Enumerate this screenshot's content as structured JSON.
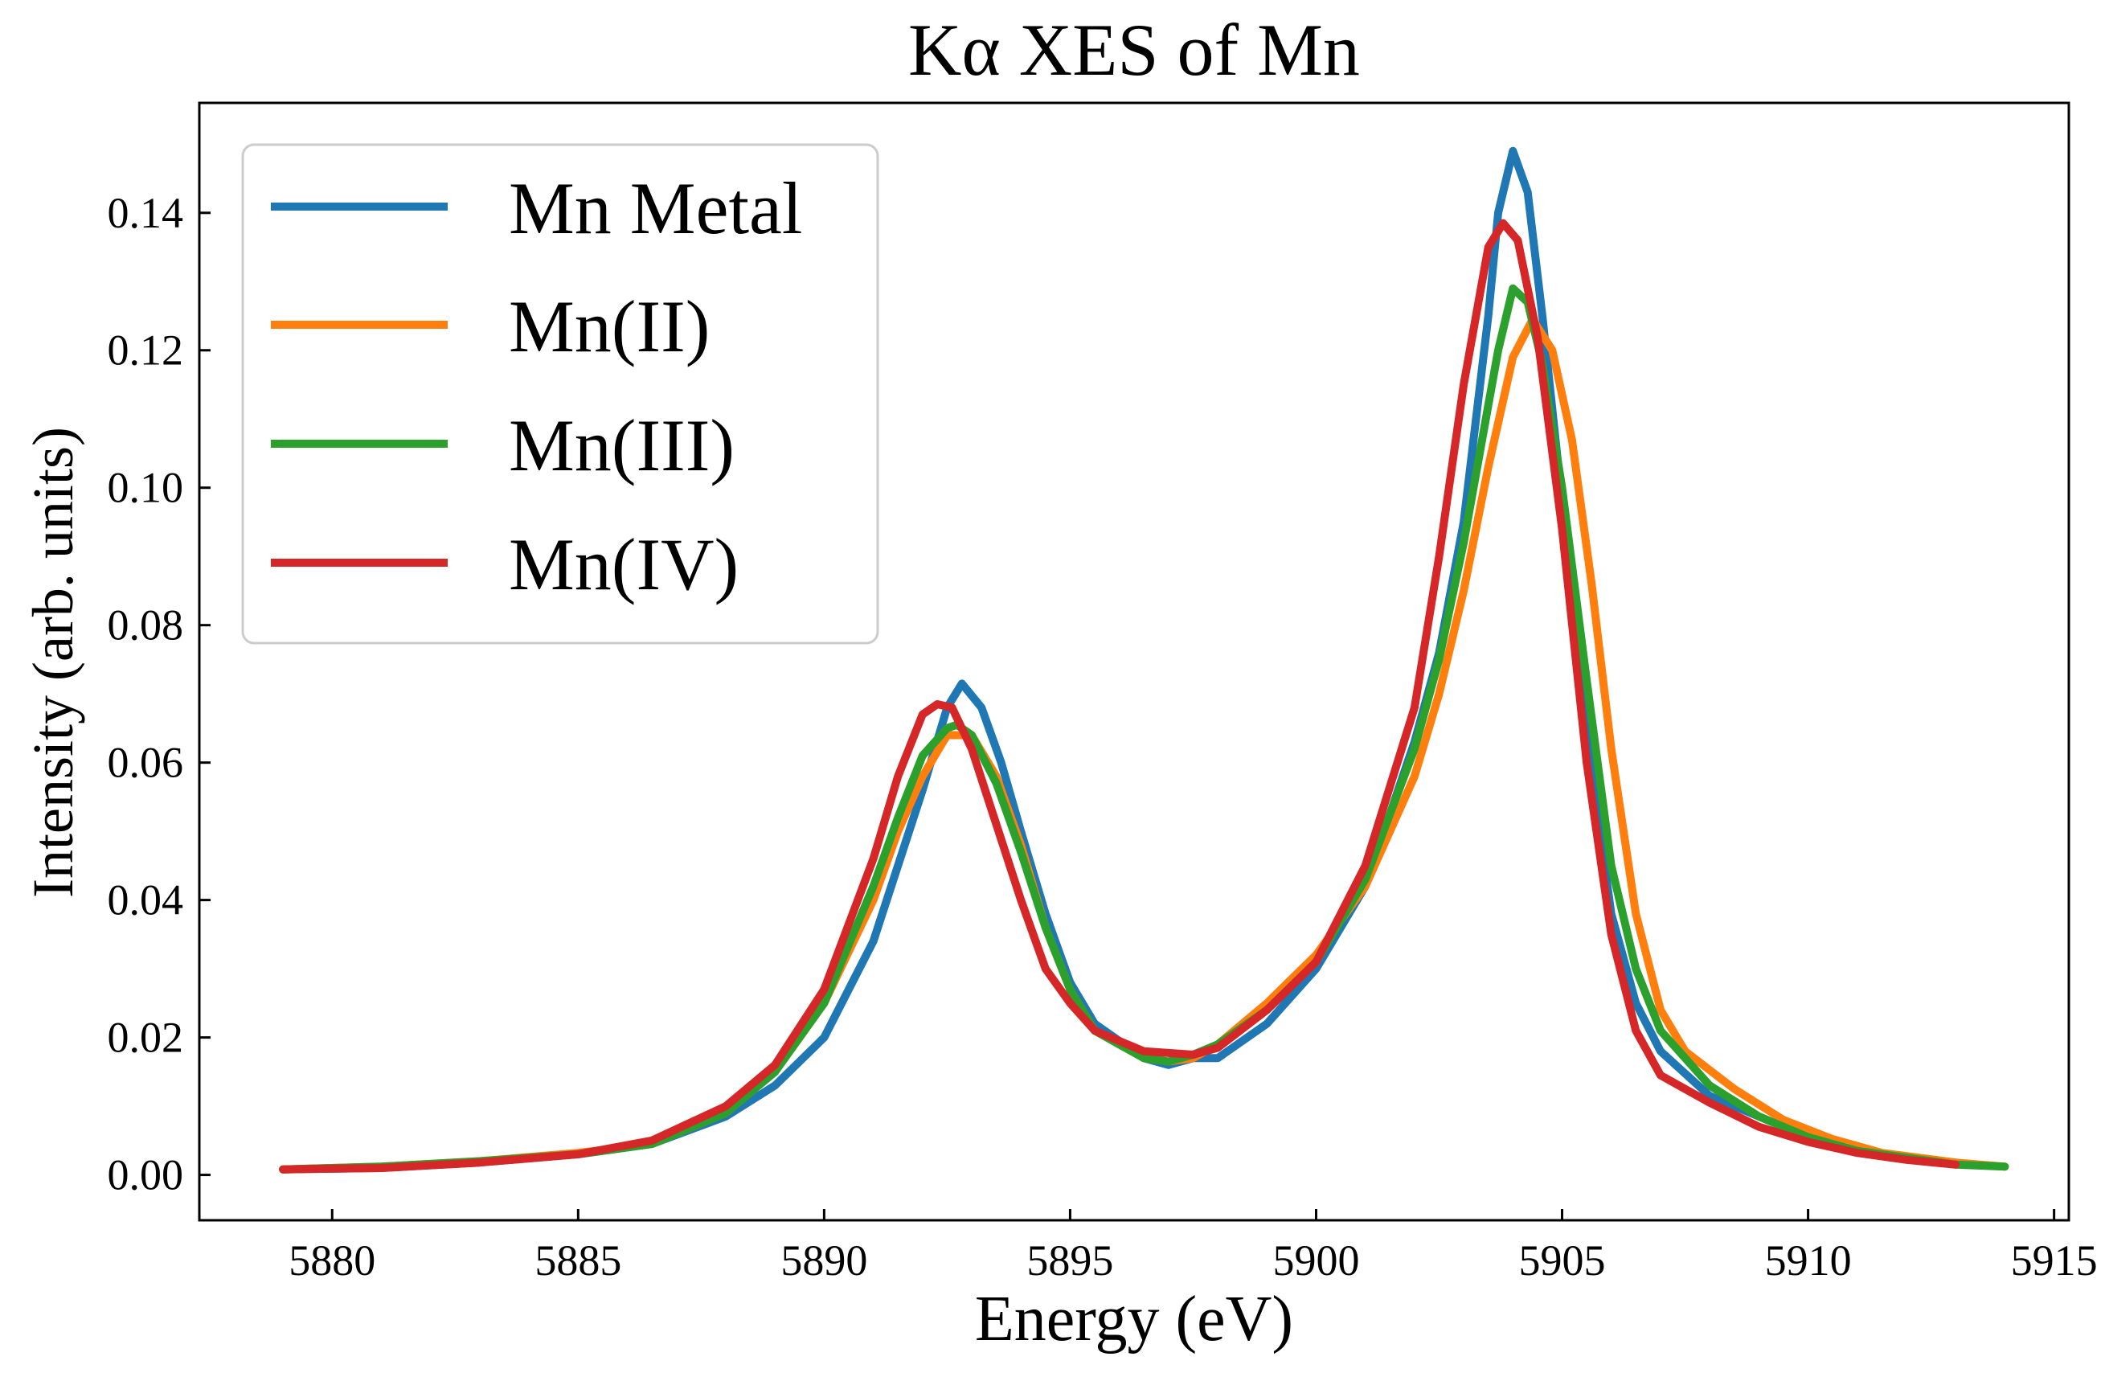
{
  "chart_data": {
    "type": "line",
    "title": "Kα XES of Mn",
    "xlabel": "Energy (eV)",
    "ylabel": "Intensity (arb. units)",
    "xlim": [
      5877.3,
      5915.3
    ],
    "ylim": [
      -0.0066,
      0.156
    ],
    "xticks": [
      5880,
      5885,
      5890,
      5895,
      5900,
      5905,
      5910,
      5915
    ],
    "yticks": [
      0.0,
      0.02,
      0.04,
      0.06,
      0.08,
      0.1,
      0.12,
      0.14
    ],
    "xtick_labels": [
      "5880",
      "5885",
      "5890",
      "5895",
      "5900",
      "5905",
      "5910",
      "5915"
    ],
    "ytick_labels": [
      "0.00",
      "0.02",
      "0.04",
      "0.06",
      "0.08",
      "0.10",
      "0.12",
      "0.14"
    ],
    "grid": false,
    "legend_position": "top-left",
    "series": [
      {
        "name": "Mn Metal",
        "color": "#1f77b4",
        "points": [
          [
            5879,
            0.0008
          ],
          [
            5881,
            0.001
          ],
          [
            5883,
            0.0018
          ],
          [
            5885,
            0.003
          ],
          [
            5886.5,
            0.0045
          ],
          [
            5888,
            0.0085
          ],
          [
            5889,
            0.013
          ],
          [
            5890,
            0.02
          ],
          [
            5891,
            0.034
          ],
          [
            5891.5,
            0.045
          ],
          [
            5892,
            0.056
          ],
          [
            5892.5,
            0.068
          ],
          [
            5892.8,
            0.0715
          ],
          [
            5893.2,
            0.068
          ],
          [
            5893.6,
            0.06
          ],
          [
            5894,
            0.05
          ],
          [
            5894.5,
            0.038
          ],
          [
            5895,
            0.028
          ],
          [
            5895.5,
            0.022
          ],
          [
            5896.5,
            0.017
          ],
          [
            5897,
            0.016
          ],
          [
            5897.5,
            0.017
          ],
          [
            5898,
            0.017
          ],
          [
            5899,
            0.022
          ],
          [
            5900,
            0.03
          ],
          [
            5901,
            0.042
          ],
          [
            5902,
            0.063
          ],
          [
            5902.5,
            0.076
          ],
          [
            5903,
            0.095
          ],
          [
            5903.5,
            0.125
          ],
          [
            5903.7,
            0.14
          ],
          [
            5904,
            0.149
          ],
          [
            5904.3,
            0.143
          ],
          [
            5904.6,
            0.125
          ],
          [
            5905,
            0.098
          ],
          [
            5905.5,
            0.064
          ],
          [
            5906,
            0.038
          ],
          [
            5906.5,
            0.025
          ],
          [
            5907,
            0.018
          ],
          [
            5908,
            0.0115
          ],
          [
            5909,
            0.0085
          ],
          [
            5910,
            0.0055
          ],
          [
            5911,
            0.0035
          ],
          [
            5912,
            0.0025
          ],
          [
            5913,
            0.0018
          ]
        ]
      },
      {
        "name": "Mn(II)",
        "color": "#ff7f0e",
        "points": [
          [
            5879,
            0.0008
          ],
          [
            5881,
            0.0012
          ],
          [
            5883,
            0.002
          ],
          [
            5885,
            0.0032
          ],
          [
            5886.5,
            0.0045
          ],
          [
            5888,
            0.009
          ],
          [
            5889,
            0.015
          ],
          [
            5890,
            0.025
          ],
          [
            5891,
            0.04
          ],
          [
            5891.5,
            0.05
          ],
          [
            5892,
            0.058
          ],
          [
            5892.5,
            0.064
          ],
          [
            5893,
            0.064
          ],
          [
            5893.5,
            0.058
          ],
          [
            5894,
            0.048
          ],
          [
            5894.5,
            0.036
          ],
          [
            5895,
            0.027
          ],
          [
            5895.5,
            0.021
          ],
          [
            5896.5,
            0.017
          ],
          [
            5897,
            0.0165
          ],
          [
            5897.5,
            0.017
          ],
          [
            5898,
            0.019
          ],
          [
            5899,
            0.025
          ],
          [
            5900,
            0.032
          ],
          [
            5901,
            0.042
          ],
          [
            5902,
            0.058
          ],
          [
            5902.5,
            0.07
          ],
          [
            5903,
            0.085
          ],
          [
            5903.5,
            0.103
          ],
          [
            5904,
            0.119
          ],
          [
            5904.4,
            0.1245
          ],
          [
            5904.8,
            0.12
          ],
          [
            5905.2,
            0.107
          ],
          [
            5905.6,
            0.086
          ],
          [
            5906,
            0.062
          ],
          [
            5906.5,
            0.038
          ],
          [
            5907,
            0.024
          ],
          [
            5907.5,
            0.018
          ],
          [
            5908.5,
            0.0125
          ],
          [
            5909.5,
            0.008
          ],
          [
            5910.5,
            0.0052
          ],
          [
            5911.5,
            0.0032
          ],
          [
            5913,
            0.0018
          ],
          [
            5914,
            0.0012
          ]
        ]
      },
      {
        "name": "Mn(III)",
        "color": "#2ca02c",
        "points": [
          [
            5879,
            0.0008
          ],
          [
            5881,
            0.0012
          ],
          [
            5883,
            0.002
          ],
          [
            5885,
            0.003
          ],
          [
            5886.5,
            0.0045
          ],
          [
            5888,
            0.009
          ],
          [
            5889,
            0.015
          ],
          [
            5890,
            0.025
          ],
          [
            5891,
            0.042
          ],
          [
            5891.5,
            0.052
          ],
          [
            5892,
            0.061
          ],
          [
            5892.5,
            0.065
          ],
          [
            5892.7,
            0.0655
          ],
          [
            5893,
            0.064
          ],
          [
            5893.5,
            0.057
          ],
          [
            5894,
            0.047
          ],
          [
            5894.5,
            0.036
          ],
          [
            5895,
            0.027
          ],
          [
            5895.5,
            0.021
          ],
          [
            5896.5,
            0.017
          ],
          [
            5897,
            0.0165
          ],
          [
            5897.5,
            0.0175
          ],
          [
            5898,
            0.019
          ],
          [
            5899,
            0.024
          ],
          [
            5900,
            0.031
          ],
          [
            5901,
            0.043
          ],
          [
            5902,
            0.062
          ],
          [
            5902.5,
            0.075
          ],
          [
            5903,
            0.092
          ],
          [
            5903.5,
            0.112
          ],
          [
            5903.7,
            0.12
          ],
          [
            5904,
            0.129
          ],
          [
            5904.3,
            0.127
          ],
          [
            5904.6,
            0.118
          ],
          [
            5905,
            0.1
          ],
          [
            5905.5,
            0.072
          ],
          [
            5906,
            0.045
          ],
          [
            5906.5,
            0.03
          ],
          [
            5907,
            0.021
          ],
          [
            5908,
            0.013
          ],
          [
            5909,
            0.0085
          ],
          [
            5910,
            0.0055
          ],
          [
            5911,
            0.0035
          ],
          [
            5912,
            0.0025
          ],
          [
            5913,
            0.0015
          ],
          [
            5914,
            0.0012
          ]
        ]
      },
      {
        "name": "Mn(IV)",
        "color": "#d62728",
        "points": [
          [
            5879,
            0.0008
          ],
          [
            5881,
            0.001
          ],
          [
            5883,
            0.0018
          ],
          [
            5885,
            0.003
          ],
          [
            5886.5,
            0.005
          ],
          [
            5888,
            0.01
          ],
          [
            5889,
            0.016
          ],
          [
            5890,
            0.027
          ],
          [
            5891,
            0.046
          ],
          [
            5891.5,
            0.058
          ],
          [
            5892,
            0.067
          ],
          [
            5892.3,
            0.0685
          ],
          [
            5892.6,
            0.068
          ],
          [
            5893,
            0.062
          ],
          [
            5893.5,
            0.051
          ],
          [
            5894,
            0.04
          ],
          [
            5894.5,
            0.03
          ],
          [
            5895,
            0.025
          ],
          [
            5895.5,
            0.021
          ],
          [
            5896.5,
            0.018
          ],
          [
            5897.5,
            0.0175
          ],
          [
            5898,
            0.0185
          ],
          [
            5899,
            0.024
          ],
          [
            5900,
            0.031
          ],
          [
            5901,
            0.045
          ],
          [
            5902,
            0.068
          ],
          [
            5902.5,
            0.09
          ],
          [
            5903,
            0.115
          ],
          [
            5903.5,
            0.135
          ],
          [
            5903.8,
            0.1385
          ],
          [
            5904.1,
            0.136
          ],
          [
            5904.5,
            0.122
          ],
          [
            5905,
            0.094
          ],
          [
            5905.5,
            0.06
          ],
          [
            5906,
            0.035
          ],
          [
            5906.5,
            0.021
          ],
          [
            5907,
            0.0145
          ],
          [
            5908,
            0.0105
          ],
          [
            5909,
            0.007
          ],
          [
            5910,
            0.0048
          ],
          [
            5911,
            0.0032
          ],
          [
            5912,
            0.0022
          ],
          [
            5913,
            0.0015
          ]
        ]
      }
    ]
  }
}
